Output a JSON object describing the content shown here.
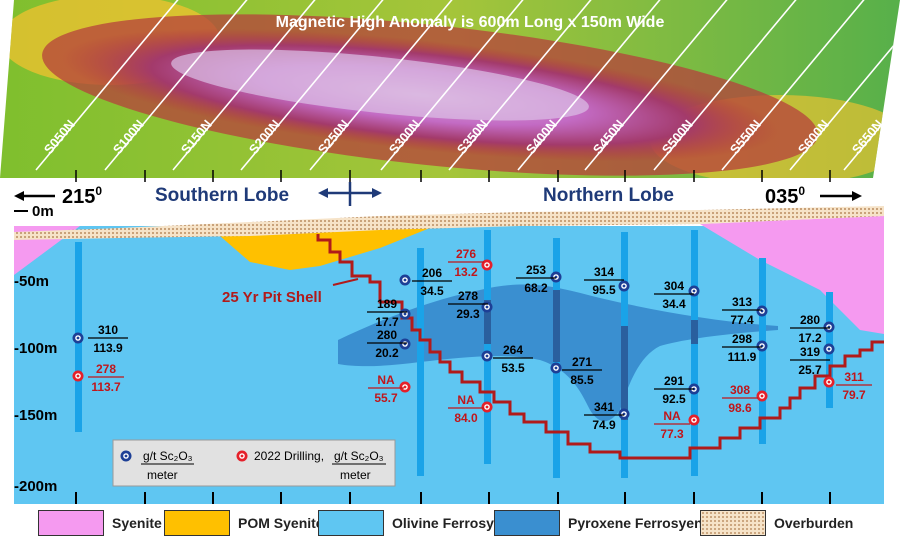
{
  "banner_title": "Magnetic High Anomaly is 600m Long x 150m Wide",
  "sections": [
    "S050N",
    "S100N",
    "S150N",
    "S200N",
    "S250N",
    "S300N",
    "S350N",
    "S400N",
    "S450N",
    "S500N",
    "S550N",
    "S600N",
    "S650N"
  ],
  "direction_left": "215",
  "direction_right": "035",
  "degree_mark": "0",
  "lobes": {
    "south": "Southern Lobe",
    "north": "Northern Lobe"
  },
  "depth_labels": [
    "0m",
    "-50m",
    "-100m",
    "-150m",
    "-200m"
  ],
  "pit_shell_label": "25 Yr Pit Shell",
  "assays_historic": [
    {
      "id": "h1",
      "grade": "310",
      "meters": "113.9"
    },
    {
      "id": "h2",
      "grade": "206",
      "meters": "34.5"
    },
    {
      "id": "h3",
      "grade": "189",
      "meters": "17.7"
    },
    {
      "id": "h4",
      "grade": "280",
      "meters": "20.2"
    },
    {
      "id": "h5",
      "grade": "278",
      "meters": "29.3"
    },
    {
      "id": "h6",
      "grade": "264",
      "meters": "53.5"
    },
    {
      "id": "h7",
      "grade": "253",
      "meters": "68.2"
    },
    {
      "id": "h8",
      "grade": "271",
      "meters": "85.5"
    },
    {
      "id": "h9",
      "grade": "314",
      "meters": "95.5"
    },
    {
      "id": "h10",
      "grade": "341",
      "meters": "74.9"
    },
    {
      "id": "h11",
      "grade": "304",
      "meters": "34.4"
    },
    {
      "id": "h12",
      "grade": "291",
      "meters": "92.5"
    },
    {
      "id": "h13",
      "grade": "313",
      "meters": "77.4"
    },
    {
      "id": "h14",
      "grade": "298",
      "meters": "111.9"
    },
    {
      "id": "h15",
      "grade": "280",
      "meters": "17.2"
    },
    {
      "id": "h16",
      "grade": "319",
      "meters": "25.7"
    }
  ],
  "assays_2022": [
    {
      "id": "n1",
      "grade": "278",
      "meters": "113.7"
    },
    {
      "id": "n2",
      "grade": "NA",
      "meters": "55.7"
    },
    {
      "id": "n3",
      "grade": "276",
      "meters": "13.2"
    },
    {
      "id": "n4",
      "grade": "NA",
      "meters": "84.0"
    },
    {
      "id": "n5",
      "grade": "NA",
      "meters": "77.3"
    },
    {
      "id": "n6",
      "grade": "308",
      "meters": "98.6"
    },
    {
      "id": "n7",
      "grade": "311",
      "meters": "79.7"
    }
  ],
  "key": {
    "historic_top": "g/t Sc₂O₃",
    "historic_bottom": "meter",
    "drilling_prefix": "2022 Drilling,",
    "drilling_top": "g/t Sc₂O₃",
    "drilling_bottom": "meter"
  },
  "legend": [
    "Syenite",
    "POM Syenite",
    "Olivine Ferrosyenite",
    "Pyroxene Ferrosyenite",
    "Overburden"
  ],
  "colors": {
    "syenite": "#f59af0",
    "pom_syenite": "#ffc000",
    "olivine": "#5fc6f2",
    "pyroxene": "#3a8fd0",
    "drillhole": "#1aa3e8",
    "pit_shell": "#b11a1a",
    "historic_text": "#000000",
    "drilling_text": "#c0161b",
    "lobe_text": "#1f3a78"
  }
}
